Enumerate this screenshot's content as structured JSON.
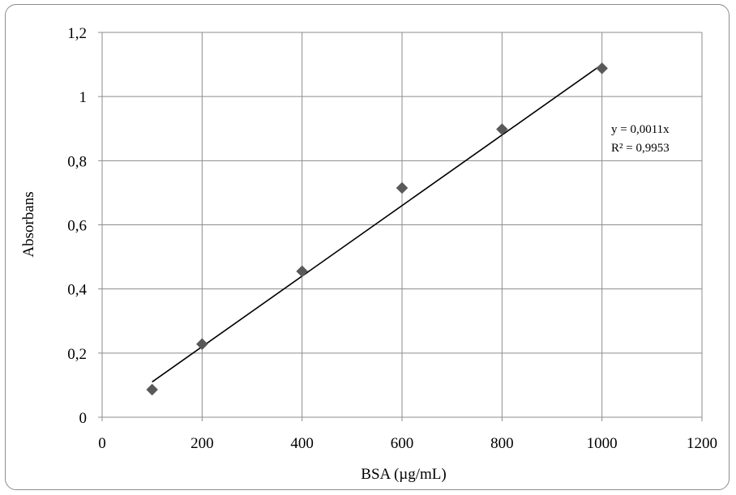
{
  "chart_data": {
    "type": "scatter",
    "title": "",
    "xlabel": "BSA (µg/mL)",
    "ylabel": "Absorbans",
    "xlim": [
      0,
      1200
    ],
    "ylim": [
      0,
      1.2
    ],
    "x_ticks": [
      0,
      200,
      400,
      600,
      800,
      1000,
      1200
    ],
    "y_ticks": [
      0,
      0.2,
      0.4,
      0.6,
      0.8,
      1.0,
      1.2
    ],
    "x_tick_labels": [
      "0",
      "200",
      "400",
      "600",
      "800",
      "1000",
      "1200"
    ],
    "y_tick_labels": [
      "0",
      "0,2",
      "0,4",
      "0,6",
      "0,8",
      "1",
      "1,2"
    ],
    "grid": true,
    "series": [
      {
        "x": [
          100,
          200,
          400,
          600,
          800,
          1000
        ],
        "y": [
          0.086,
          0.228,
          0.455,
          0.715,
          0.898,
          1.088
        ],
        "marker": "diamond",
        "color": "#595959"
      }
    ],
    "trendline": {
      "type": "linear",
      "slope": 0.0011,
      "intercept": 0,
      "x_range": [
        100,
        1000
      ],
      "equation": "y = 0,0011x",
      "r_squared": "R² = 0,9953",
      "color": "#000000"
    }
  }
}
